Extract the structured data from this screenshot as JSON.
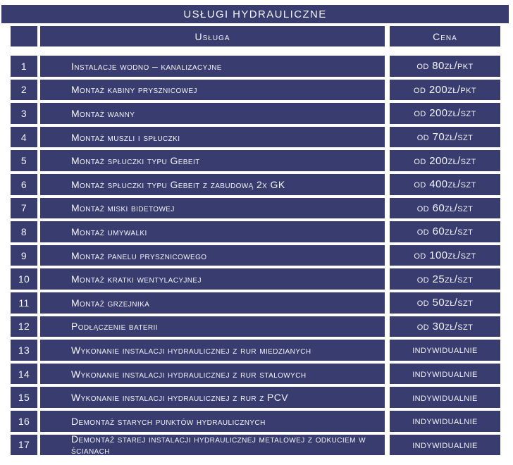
{
  "title": "USŁUGI HYDRAULICZNE",
  "columns": {
    "service": "Usługa",
    "price": "Cena"
  },
  "rows": [
    {
      "no": "1",
      "service": "Instalacje wodno – kanalizacyjne",
      "price": "od 80zł/pkt"
    },
    {
      "no": "2",
      "service": "Montaż kabiny prysznicowej",
      "price": "od 200zł/pkt"
    },
    {
      "no": "3",
      "service": "Montaż wanny",
      "price": "od 200zł/szt"
    },
    {
      "no": "4",
      "service": "Montaż muszli i spłuczki",
      "price": "od 70zł/szt"
    },
    {
      "no": "5",
      "service": "Montaż spłuczki typu Gebeit",
      "price": "od 200zł/szt"
    },
    {
      "no": "6",
      "service": "Montaż spłuczki typu Gebeit z zabudową 2x GK",
      "price": "od 400zł/szt"
    },
    {
      "no": "7",
      "service": "Montaż miski bidetowej",
      "price": "od 60zł/szt"
    },
    {
      "no": "8",
      "service": "Montaż umywalki",
      "price": "od 60zł/szt"
    },
    {
      "no": "9",
      "service": "Montaż panelu prysznicowego",
      "price": "od 100zł/szt"
    },
    {
      "no": "10",
      "service": "Montaż kratki wentylacyjnej",
      "price": "od 25zł/szt"
    },
    {
      "no": "11",
      "service": "Montaż grzejnika",
      "price": "od 50zł/szt"
    },
    {
      "no": "12",
      "service": "Podłączenie baterii",
      "price": "od 30zł/szt"
    },
    {
      "no": "13",
      "service": "Wykonanie instalacji hydraulicznej z rur miedzianych",
      "price": "indywidualnie"
    },
    {
      "no": "14",
      "service": "Wykonanie instalacji hydraulicznej z rur stalowych",
      "price": "indywidualnie"
    },
    {
      "no": "15",
      "service": "Wykonanie instalacji hydraulicznej z rur z PCV",
      "price": "indywidualnie"
    },
    {
      "no": "16",
      "service": "Demontaż starych punktów hydraulicznych",
      "price": "indywidualnie"
    },
    {
      "no": "17",
      "service": "Demontaż starej instalacji hydraulicznej metalowej z odkuciem w ścianach",
      "price": "indywidualnie"
    }
  ],
  "colors": {
    "box": "#383c6e",
    "text": "#f3f4f8",
    "background": "#ffffff"
  }
}
